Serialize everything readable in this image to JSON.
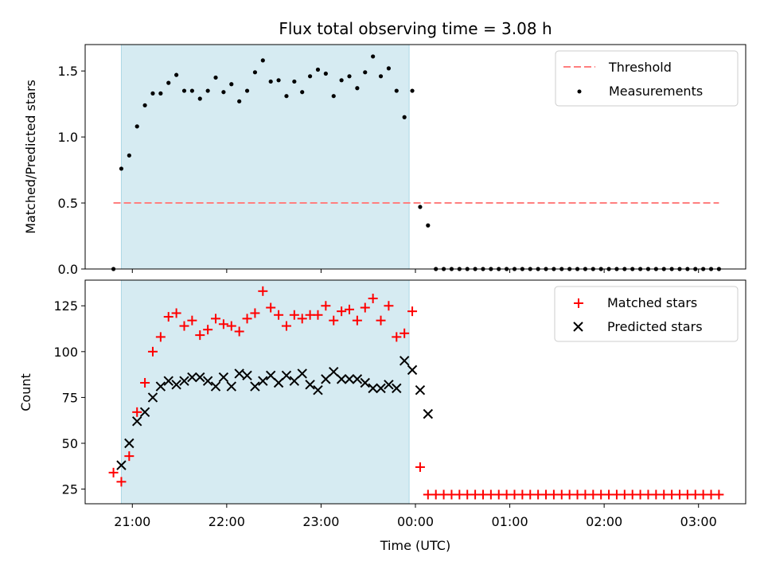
{
  "title": "Flux total observing time = 3.08 h",
  "x_axis": {
    "label": "Time (UTC)",
    "ticks": [
      "21:00",
      "22:00",
      "23:00",
      "00:00",
      "01:00",
      "02:00",
      "03:00"
    ],
    "range": [
      "20:30",
      "03:30"
    ]
  },
  "shaded_interval": {
    "start": "20:53",
    "end": "23:56",
    "color": "#add8e6"
  },
  "colors": {
    "threshold": "#ff7f7f",
    "measurements": "#000000",
    "matched": "#ff0000",
    "predicted": "#000000",
    "shade": "#add8e6"
  },
  "chart_data": [
    {
      "type": "scatter",
      "ylabel": "Matched/Predicted stars",
      "ylim": [
        0,
        1.7
      ],
      "yticks": [
        "0.0",
        "0.5",
        "1.0",
        "1.5"
      ],
      "legend_position": "top-right",
      "legend": [
        "Threshold",
        "Measurements"
      ],
      "threshold": {
        "name": "Threshold",
        "y": 0.5,
        "x_start": "20:48",
        "x_end": "03:13",
        "style": "dashed"
      },
      "series": [
        {
          "name": "Measurements",
          "marker": "dot",
          "x": [
            "20:48",
            "20:53",
            "20:58",
            "21:03",
            "21:08",
            "21:13",
            "21:18",
            "21:23",
            "21:28",
            "21:33",
            "21:38",
            "21:43",
            "21:48",
            "21:53",
            "21:58",
            "22:03",
            "22:08",
            "22:13",
            "22:18",
            "22:23",
            "22:28",
            "22:33",
            "22:38",
            "22:43",
            "22:48",
            "22:53",
            "22:58",
            "23:03",
            "23:08",
            "23:13",
            "23:18",
            "23:23",
            "23:28",
            "23:33",
            "23:38",
            "23:43",
            "23:48",
            "23:53",
            "23:58",
            "00:03",
            "00:08",
            "00:13",
            "00:18",
            "00:23",
            "00:28",
            "00:33",
            "00:38",
            "00:43",
            "00:48",
            "00:53",
            "00:58",
            "01:03",
            "01:08",
            "01:13",
            "01:18",
            "01:23",
            "01:28",
            "01:33",
            "01:38",
            "01:43",
            "01:48",
            "01:53",
            "01:58",
            "02:03",
            "02:08",
            "02:13",
            "02:18",
            "02:23",
            "02:28",
            "02:33",
            "02:38",
            "02:43",
            "02:48",
            "02:53",
            "02:58",
            "03:03",
            "03:08",
            "03:13"
          ],
          "y": [
            0.0,
            0.76,
            0.86,
            1.08,
            1.24,
            1.33,
            1.33,
            1.41,
            1.47,
            1.35,
            1.35,
            1.29,
            1.35,
            1.45,
            1.34,
            1.4,
            1.27,
            1.35,
            1.49,
            1.58,
            1.42,
            1.43,
            1.31,
            1.42,
            1.34,
            1.46,
            1.51,
            1.48,
            1.31,
            1.43,
            1.46,
            1.37,
            1.49,
            1.61,
            1.46,
            1.52,
            1.35,
            1.15,
            1.35,
            0.47,
            0.33,
            0.0,
            0.0,
            0.0,
            0.0,
            0.0,
            0.0,
            0.0,
            0.0,
            0.0,
            0.0,
            0.0,
            0.0,
            0.0,
            0.0,
            0.0,
            0.0,
            0.0,
            0.0,
            0.0,
            0.0,
            0.0,
            0.0,
            0.0,
            0.0,
            0.0,
            0.0,
            0.0,
            0.0,
            0.0,
            0.0,
            0.0,
            0.0,
            0.0,
            0.0,
            0.0,
            0.0,
            0.0
          ]
        }
      ]
    },
    {
      "type": "scatter",
      "ylabel": "Count",
      "ylim": [
        17,
        139
      ],
      "yticks": [
        "25",
        "50",
        "75",
        "100",
        "125"
      ],
      "legend_position": "top-right",
      "legend": [
        "Matched stars",
        "Predicted stars"
      ],
      "series": [
        {
          "name": "Matched stars",
          "marker": "plus",
          "x": [
            "20:48",
            "20:53",
            "20:58",
            "21:03",
            "21:08",
            "21:13",
            "21:18",
            "21:23",
            "21:28",
            "21:33",
            "21:38",
            "21:43",
            "21:48",
            "21:53",
            "21:58",
            "22:03",
            "22:08",
            "22:13",
            "22:18",
            "22:23",
            "22:28",
            "22:33",
            "22:38",
            "22:43",
            "22:48",
            "22:53",
            "22:58",
            "23:03",
            "23:08",
            "23:13",
            "23:18",
            "23:23",
            "23:28",
            "23:33",
            "23:38",
            "23:43",
            "23:48",
            "23:53",
            "23:58",
            "00:03",
            "00:08",
            "00:13",
            "00:18",
            "00:23",
            "00:28",
            "00:33",
            "00:38",
            "00:43",
            "00:48",
            "00:53",
            "00:58",
            "01:03",
            "01:08",
            "01:13",
            "01:18",
            "01:23",
            "01:28",
            "01:33",
            "01:38",
            "01:43",
            "01:48",
            "01:53",
            "01:58",
            "02:03",
            "02:08",
            "02:13",
            "02:18",
            "02:23",
            "02:28",
            "02:33",
            "02:38",
            "02:43",
            "02:48",
            "02:53",
            "02:58",
            "03:03",
            "03:08",
            "03:13"
          ],
          "y": [
            34,
            29,
            43,
            67,
            83,
            100,
            108,
            119,
            121,
            114,
            117,
            109,
            112,
            118,
            115,
            114,
            111,
            118,
            121,
            133,
            124,
            120,
            114,
            120,
            118,
            120,
            120,
            125,
            117,
            122,
            123,
            117,
            124,
            129,
            117,
            125,
            108,
            110,
            122,
            37,
            22,
            22,
            22,
            22,
            22,
            22,
            22,
            22,
            22,
            22,
            22,
            22,
            22,
            22,
            22,
            22,
            22,
            22,
            22,
            22,
            22,
            22,
            22,
            22,
            22,
            22,
            22,
            22,
            22,
            22,
            22,
            22,
            22,
            22,
            22,
            22,
            22,
            22
          ]
        },
        {
          "name": "Predicted stars",
          "marker": "x",
          "x": [
            "20:48",
            "20:53",
            "20:58",
            "21:03",
            "21:08",
            "21:13",
            "21:18",
            "21:23",
            "21:28",
            "21:33",
            "21:38",
            "21:43",
            "21:48",
            "21:53",
            "21:58",
            "22:03",
            "22:08",
            "22:13",
            "22:18",
            "22:23",
            "22:28",
            "22:33",
            "22:38",
            "22:43",
            "22:48",
            "22:53",
            "22:58",
            "23:03",
            "23:08",
            "23:13",
            "23:18",
            "23:23",
            "23:28",
            "23:33",
            "23:38",
            "23:43",
            "23:48",
            "23:53",
            "23:58",
            "00:03",
            "00:08"
          ],
          "y": [
            null,
            38,
            50,
            62,
            67,
            75,
            81,
            84,
            82,
            84,
            86,
            86,
            84,
            81,
            86,
            81,
            88,
            87,
            81,
            84,
            87,
            83,
            87,
            84,
            88,
            82,
            79,
            85,
            89,
            85,
            85,
            85,
            83,
            80,
            80,
            82,
            80,
            95,
            90,
            79,
            66
          ]
        }
      ]
    }
  ]
}
